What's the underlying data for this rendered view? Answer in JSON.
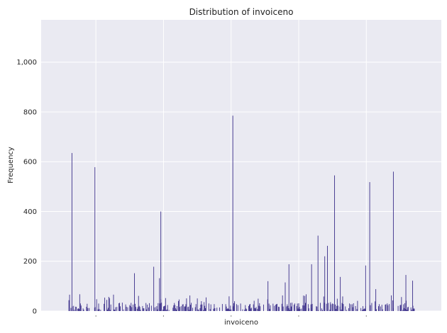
{
  "chart_data": {
    "type": "bar",
    "title": "Distribution of invoiceno",
    "xlabel": "invoiceno",
    "ylabel": "Frequency",
    "ylim": [
      0,
      1170
    ],
    "yticks": [
      0,
      200,
      400,
      600,
      800,
      1000
    ],
    "ytick_labels": [
      "0",
      "200",
      "400",
      "600",
      "800",
      "1,000"
    ],
    "xtick_labels": [
      "",
      "",
      "",
      "",
      ""
    ],
    "grid": true,
    "colors": {
      "bar": "#3b2f8a",
      "plot_bg": "#eaeaf2",
      "grid": "#ffffff"
    },
    "x_range": [
      0,
      1000
    ],
    "x_ticks": [
      120,
      320,
      520,
      720,
      920
    ],
    "peaks": [
      {
        "x": 49,
        "value": 635
      },
      {
        "x": 117,
        "value": 578
      },
      {
        "x": 234,
        "value": 152
      },
      {
        "x": 291,
        "value": 178
      },
      {
        "x": 308,
        "value": 132
      },
      {
        "x": 312,
        "value": 400
      },
      {
        "x": 525,
        "value": 785
      },
      {
        "x": 629,
        "value": 120
      },
      {
        "x": 680,
        "value": 115
      },
      {
        "x": 691,
        "value": 188
      },
      {
        "x": 734,
        "value": 62
      },
      {
        "x": 758,
        "value": 188
      },
      {
        "x": 777,
        "value": 303
      },
      {
        "x": 797,
        "value": 220
      },
      {
        "x": 805,
        "value": 262
      },
      {
        "x": 826,
        "value": 545
      },
      {
        "x": 843,
        "value": 137
      },
      {
        "x": 918,
        "value": 183
      },
      {
        "x": 930,
        "value": 518
      },
      {
        "x": 948,
        "value": 88
      },
      {
        "x": 1000,
        "value": 560
      },
      {
        "x": 1037,
        "value": 145
      },
      {
        "x": 1057,
        "value": 122
      }
    ],
    "noise_seed": 7
  }
}
